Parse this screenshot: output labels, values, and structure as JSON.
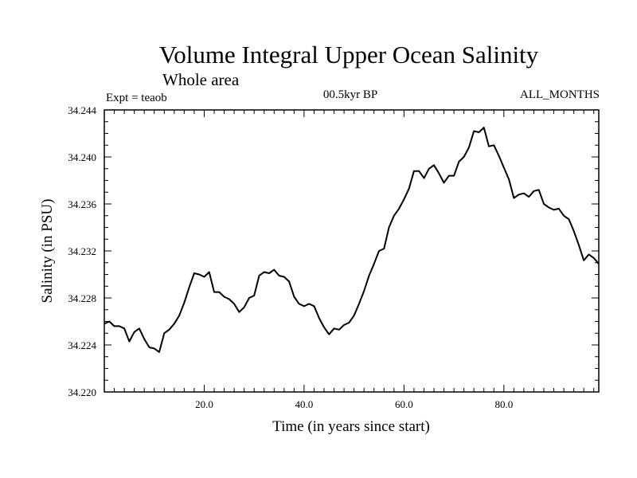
{
  "chart_data": {
    "type": "line",
    "title": "Volume Integral Upper Ocean Salinity",
    "subtitle": "Whole area",
    "left_label": "Expt = teaob",
    "center_label": "00.5kyr BP",
    "right_label": "ALL_MONTHS",
    "xlabel": "Time (in years since start)",
    "ylabel": "Salinity (in PSU)",
    "xlim": [
      0,
      99
    ],
    "ylim": [
      34.22,
      34.244
    ],
    "x_ticks": [
      20,
      40,
      60,
      80
    ],
    "x_tick_labels": [
      "20.0",
      "40.0",
      "60.0",
      "80.0"
    ],
    "y_ticks": [
      34.22,
      34.224,
      34.228,
      34.232,
      34.236,
      34.24,
      34.244
    ],
    "y_tick_labels": [
      "34.220",
      "34.224",
      "34.228",
      "34.232",
      "34.236",
      "34.240",
      "34.244"
    ],
    "grid": false,
    "series": [
      {
        "name": "Salinity",
        "x": [
          0,
          1,
          2,
          3,
          4,
          5,
          6,
          7,
          8,
          9,
          10,
          11,
          12,
          13,
          14,
          15,
          16,
          17,
          18,
          19,
          20,
          21,
          22,
          23,
          24,
          25,
          26,
          27,
          28,
          29,
          30,
          31,
          32,
          33,
          34,
          35,
          36,
          37,
          38,
          39,
          40,
          41,
          42,
          43,
          44,
          45,
          46,
          47,
          48,
          49,
          50,
          51,
          52,
          53,
          54,
          55,
          56,
          57,
          58,
          59,
          60,
          61,
          62,
          63,
          64,
          65,
          66,
          67,
          68,
          69,
          70,
          71,
          72,
          73,
          74,
          75,
          76,
          77,
          78,
          79,
          80,
          81,
          82,
          83,
          84,
          85,
          86,
          87,
          88,
          89,
          90,
          91,
          92,
          93,
          94,
          95,
          96,
          97,
          98,
          99
        ],
        "values": [
          34.2258,
          34.226,
          34.2256,
          34.2256,
          34.2254,
          34.2243,
          34.2251,
          34.2254,
          34.2245,
          34.2238,
          34.2237,
          34.2234,
          34.225,
          34.2253,
          34.2258,
          34.2265,
          34.2276,
          34.2289,
          34.2301,
          34.23,
          34.2298,
          34.2302,
          34.2285,
          34.2285,
          34.2281,
          34.2279,
          34.2275,
          34.2268,
          34.2272,
          34.228,
          34.2282,
          34.2299,
          34.2302,
          34.2301,
          34.2304,
          34.2299,
          34.2298,
          34.2294,
          34.2281,
          34.2275,
          34.2273,
          34.2275,
          34.2273,
          34.2263,
          34.2255,
          34.2249,
          34.2254,
          34.2253,
          34.2257,
          34.2259,
          34.2265,
          34.2275,
          34.2286,
          34.2299,
          34.2309,
          34.232,
          34.2322,
          34.234,
          34.235,
          34.2356,
          34.2364,
          34.2373,
          34.2388,
          34.2388,
          34.2382,
          34.239,
          34.2393,
          34.2386,
          34.2378,
          34.2384,
          34.2384,
          34.2396,
          34.24,
          34.2408,
          34.2422,
          34.2421,
          34.2425,
          34.2409,
          34.241,
          34.2401,
          34.2391,
          34.2381,
          34.2365,
          34.2368,
          34.2369,
          34.2366,
          34.2371,
          34.2372,
          34.236,
          34.2357,
          34.2355,
          34.2356,
          34.235,
          34.2347,
          34.2337,
          34.2325,
          34.2312,
          34.2317,
          34.2314,
          34.2309
        ]
      }
    ]
  }
}
